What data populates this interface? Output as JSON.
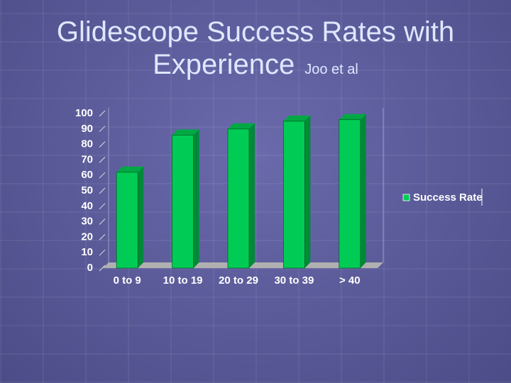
{
  "chart_data": {
    "type": "bar",
    "title": "Glidescope Success Rates with Experience",
    "subtitle": "Joo et al",
    "categories": [
      "0 to 9",
      "10 to 19",
      "20 to 29",
      "30 to 39",
      "> 40"
    ],
    "series": [
      {
        "name": "Success Rate",
        "color": "#00cc55",
        "values": [
          62,
          86,
          90,
          95,
          96
        ]
      }
    ],
    "ylim": [
      0,
      100
    ],
    "yticks": [
      0,
      10,
      20,
      30,
      40,
      50,
      60,
      70,
      80,
      90,
      100
    ],
    "legend": "right"
  }
}
